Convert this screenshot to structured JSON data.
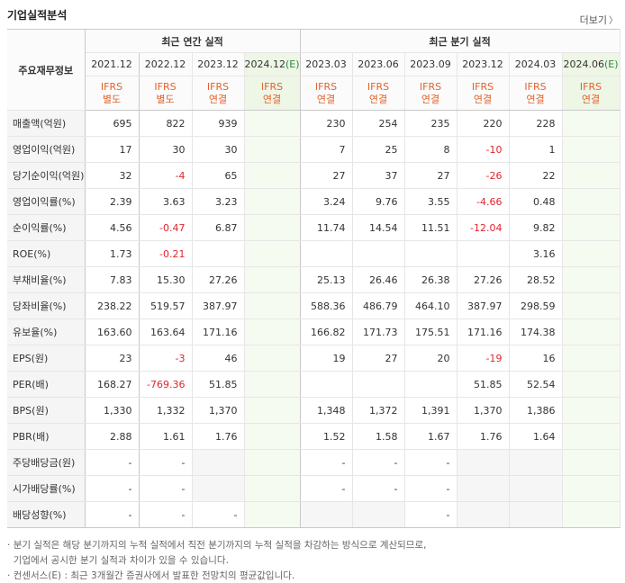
{
  "title": "기업실적분석",
  "more_label": "더보기",
  "more_icon": "chevron-right-icon",
  "row_header_label": "주요재무정보",
  "groups": {
    "annual": "최근 연간 실적",
    "quarterly": "최근 분기 실적"
  },
  "periods": [
    "2021.12",
    "2022.12",
    "2023.12",
    "2024.12",
    "2023.03",
    "2023.06",
    "2023.09",
    "2023.12",
    "2024.03",
    "2024.06"
  ],
  "estimate_mark": "(E)",
  "ifrs": [
    [
      "IFRS",
      "별도"
    ],
    [
      "IFRS",
      "별도"
    ],
    [
      "IFRS",
      "연결"
    ],
    [
      "IFRS",
      "연결"
    ],
    [
      "IFRS",
      "연결"
    ],
    [
      "IFRS",
      "연결"
    ],
    [
      "IFRS",
      "연결"
    ],
    [
      "IFRS",
      "연결"
    ],
    [
      "IFRS",
      "연결"
    ],
    [
      "IFRS",
      "연결"
    ]
  ],
  "rows": [
    {
      "label": "매출액(억원)",
      "values": [
        "695",
        "822",
        "939",
        "",
        "230",
        "254",
        "235",
        "220",
        "228",
        ""
      ]
    },
    {
      "label": "영업이익(억원)",
      "values": [
        "17",
        "30",
        "30",
        "",
        "7",
        "25",
        "8",
        "-10",
        "1",
        ""
      ]
    },
    {
      "label": "당기순이익(억원)",
      "values": [
        "32",
        "-4",
        "65",
        "",
        "27",
        "37",
        "27",
        "-26",
        "22",
        ""
      ]
    },
    {
      "label": "영업이익률(%)",
      "values": [
        "2.39",
        "3.63",
        "3.23",
        "",
        "3.24",
        "9.76",
        "3.55",
        "-4.66",
        "0.48",
        ""
      ]
    },
    {
      "label": "순이익률(%)",
      "values": [
        "4.56",
        "-0.47",
        "6.87",
        "",
        "11.74",
        "14.54",
        "11.51",
        "-12.04",
        "9.82",
        ""
      ]
    },
    {
      "label": "ROE(%)",
      "values": [
        "1.73",
        "-0.21",
        "",
        "",
        "",
        "",
        "",
        "",
        "3.16",
        ""
      ]
    },
    {
      "label": "부채비율(%)",
      "values": [
        "7.83",
        "15.30",
        "27.26",
        "",
        "25.13",
        "26.46",
        "26.38",
        "27.26",
        "28.52",
        ""
      ]
    },
    {
      "label": "당좌비율(%)",
      "values": [
        "238.22",
        "519.57",
        "387.97",
        "",
        "588.36",
        "486.79",
        "464.10",
        "387.97",
        "298.59",
        ""
      ]
    },
    {
      "label": "유보율(%)",
      "values": [
        "163.60",
        "163.64",
        "171.16",
        "",
        "166.82",
        "171.73",
        "175.51",
        "171.16",
        "174.38",
        ""
      ]
    },
    {
      "label": "EPS(원)",
      "values": [
        "23",
        "-3",
        "46",
        "",
        "19",
        "27",
        "20",
        "-19",
        "16",
        ""
      ]
    },
    {
      "label": "PER(배)",
      "values": [
        "168.27",
        "-769.36",
        "51.85",
        "",
        "",
        "",
        "",
        "51.85",
        "52.54",
        ""
      ]
    },
    {
      "label": "BPS(원)",
      "values": [
        "1,330",
        "1,332",
        "1,370",
        "",
        "1,348",
        "1,372",
        "1,391",
        "1,370",
        "1,386",
        ""
      ]
    },
    {
      "label": "PBR(배)",
      "values": [
        "2.88",
        "1.61",
        "1.76",
        "",
        "1.52",
        "1.58",
        "1.67",
        "1.76",
        "1.64",
        ""
      ]
    },
    {
      "label": "주당배당금(원)",
      "values": [
        "-",
        "-",
        "",
        "",
        "-",
        "-",
        "-",
        "",
        "",
        ""
      ]
    },
    {
      "label": "시가배당률(%)",
      "values": [
        "-",
        "-",
        "",
        "",
        "-",
        "-",
        "-",
        "",
        "",
        ""
      ]
    },
    {
      "label": "배당성향(%)",
      "values": [
        "-",
        "-",
        "-",
        "",
        "",
        "",
        "-",
        "",
        "",
        ""
      ]
    }
  ],
  "notes": [
    "분기 실적은 해당 분기까지의 누적 실적에서 직전 분기까지의 누적 실적을 차감하는 방식으로 계산되므로,",
    "기업에서 공시한 분기 실적과 차이가 있을 수 있습니다.",
    "컨센서스(E) : 최근 3개월간 증권사에서 발표한 전망치의 평균값입니다."
  ],
  "colors": {
    "negative": "#e0252d",
    "ifrs": "#e2622b",
    "estimate_bg": "#f6fbf1",
    "estimate_mark": "#2a8a3c"
  }
}
